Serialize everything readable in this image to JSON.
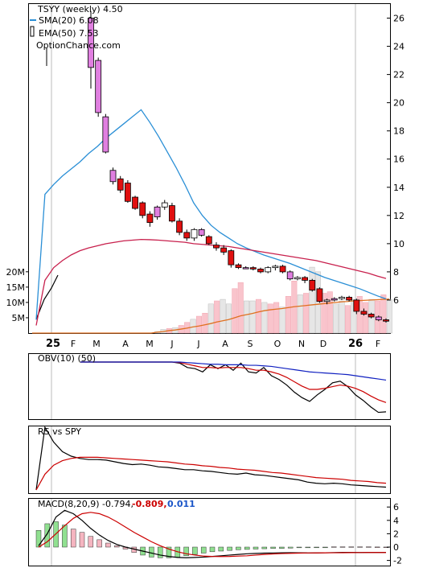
{
  "chart_data": [
    {
      "type": "candlestick",
      "panel": "price",
      "title": "TSYY (weekly) 4.50",
      "legend": [
        {
          "label": "SMA(20) 6.08",
          "color": "#2a8fd6"
        },
        {
          "label": "EMA(50) 7.53",
          "color": "#c8204d"
        }
      ],
      "source_label": "OptionChance.com",
      "y_ticks": [
        "26",
        "24",
        "22",
        "20",
        "18",
        "16",
        "14",
        "12",
        "10",
        "8",
        "6"
      ],
      "ylim": [
        3.6,
        27
      ],
      "x_month_labels": [
        {
          "label": "25",
          "bold": true
        },
        {
          "label": "F"
        },
        {
          "label": "M"
        },
        {
          "label": "A"
        },
        {
          "label": "M"
        },
        {
          "label": "J"
        },
        {
          "label": "J"
        },
        {
          "label": "A"
        },
        {
          "label": "S"
        },
        {
          "label": "O"
        },
        {
          "label": "N"
        },
        {
          "label": "D"
        },
        {
          "label": "26",
          "bold": true
        },
        {
          "label": "F"
        }
      ],
      "ohlc": [
        [
          26.0,
          26.5,
          21.0,
          22.5
        ],
        [
          23.0,
          23.2,
          19.0,
          19.3
        ],
        [
          19.0,
          19.2,
          16.4,
          16.5
        ],
        [
          15.2,
          15.4,
          14.2,
          14.4
        ],
        [
          14.6,
          14.8,
          13.6,
          13.8
        ],
        [
          14.3,
          14.5,
          12.9,
          13.0
        ],
        [
          13.3,
          13.4,
          12.4,
          12.5
        ],
        [
          12.9,
          13.0,
          11.8,
          12.0
        ],
        [
          12.1,
          12.3,
          11.2,
          11.5
        ],
        [
          11.9,
          12.7,
          11.7,
          12.6
        ],
        [
          12.6,
          13.1,
          12.4,
          12.9
        ],
        [
          12.7,
          12.9,
          11.5,
          11.6
        ],
        [
          11.6,
          11.8,
          10.6,
          10.8
        ],
        [
          10.8,
          11.0,
          10.2,
          10.4
        ],
        [
          10.4,
          11.1,
          10.2,
          11.0
        ],
        [
          11.0,
          11.1,
          10.5,
          10.6
        ],
        [
          10.5,
          10.6,
          9.9,
          10.0
        ],
        [
          9.9,
          10.1,
          9.5,
          9.7
        ],
        [
          9.7,
          9.9,
          9.2,
          9.4
        ],
        [
          9.5,
          9.6,
          8.3,
          8.5
        ],
        [
          8.5,
          8.6,
          8.2,
          8.3
        ],
        [
          8.3,
          8.4,
          8.2,
          8.3
        ],
        [
          8.3,
          8.4,
          8.1,
          8.2
        ],
        [
          8.2,
          8.3,
          7.9,
          8.0
        ],
        [
          8.0,
          8.4,
          7.9,
          8.3
        ],
        [
          8.3,
          8.5,
          8.1,
          8.4
        ],
        [
          8.4,
          8.5,
          7.9,
          8.0
        ],
        [
          8.0,
          8.1,
          7.4,
          7.5
        ],
        [
          7.5,
          7.7,
          7.4,
          7.6
        ],
        [
          7.6,
          7.7,
          7.2,
          7.4
        ],
        [
          7.4,
          7.5,
          6.6,
          6.7
        ],
        [
          6.8,
          6.9,
          5.8,
          5.9
        ],
        [
          5.9,
          6.1,
          5.7,
          6.0
        ],
        [
          6.0,
          6.2,
          5.9,
          6.1
        ],
        [
          6.1,
          6.3,
          6.0,
          6.2
        ],
        [
          6.2,
          6.3,
          5.9,
          6.0
        ],
        [
          6.0,
          6.1,
          5.0,
          5.2
        ],
        [
          5.2,
          5.4,
          4.9,
          5.0
        ],
        [
          5.0,
          5.1,
          4.7,
          4.8
        ],
        [
          4.8,
          4.9,
          4.5,
          4.6
        ],
        [
          4.6,
          4.7,
          4.4,
          4.5
        ]
      ],
      "sma20": [
        4.6,
        13.5,
        14.2,
        14.8,
        15.3,
        15.8,
        16.4,
        16.9,
        17.5,
        18.0,
        18.5,
        19.0,
        19.5,
        18.6,
        17.6,
        16.5,
        15.4,
        14.2,
        12.9,
        12.0,
        11.3,
        10.8,
        10.4,
        10.0,
        9.7,
        9.45,
        9.2,
        9.0,
        8.8,
        8.6,
        8.35,
        8.1,
        7.85,
        7.6,
        7.4,
        7.2,
        7.0,
        6.8,
        6.55,
        6.3,
        6.08
      ],
      "ema50": [
        4.2,
        7.4,
        8.3,
        8.8,
        9.2,
        9.5,
        9.7,
        9.85,
        10.0,
        10.1,
        10.2,
        10.25,
        10.3,
        10.28,
        10.25,
        10.2,
        10.15,
        10.1,
        10.0,
        9.95,
        9.9,
        9.85,
        9.8,
        9.7,
        9.6,
        9.5,
        9.4,
        9.3,
        9.2,
        9.1,
        9.0,
        8.9,
        8.8,
        8.65,
        8.5,
        8.35,
        8.2,
        8.05,
        7.9,
        7.7,
        7.53
      ]
    },
    {
      "type": "bar",
      "panel": "volume",
      "y_ticks": [
        "20M",
        "15M",
        "10M",
        "5M"
      ],
      "ylim": [
        0,
        21000000
      ],
      "values": [
        0,
        0,
        0,
        0,
        0,
        0,
        0,
        0,
        0,
        0,
        0,
        0,
        0,
        0,
        0,
        0,
        0,
        0,
        0,
        0,
        0,
        0.5,
        1.2,
        1.5,
        1.8,
        2.5,
        3.5,
        4.5,
        5.5,
        6.5,
        9.5,
        10.5,
        11,
        9.5,
        14.5,
        16.5,
        10.5,
        10.5,
        11,
        10,
        9.5,
        10,
        8.5,
        12,
        17,
        12.5,
        13,
        21.5,
        20,
        13,
        13.5,
        9.5,
        10.5,
        9,
        11,
        12,
        10,
        11,
        10.5,
        12.5,
        11
      ],
      "vol_ma": [
        0,
        0,
        0,
        0,
        0,
        0,
        0,
        0,
        0,
        0,
        0,
        0,
        0,
        0,
        0,
        0,
        0,
        0,
        0,
        0,
        0,
        0.3,
        0.5,
        0.8,
        1,
        1.3,
        1.6,
        2,
        2.3,
        2.7,
        3.1,
        3.6,
        4,
        4.4,
        5,
        5.6,
        6,
        6.4,
        6.9,
        7.3,
        7.6,
        7.8,
        8,
        8.3,
        8.6,
        8.8,
        9,
        9.2,
        9.4,
        9.6,
        9.8,
        10,
        10.2,
        10.3,
        10.5,
        10.6,
        10.7,
        10.8,
        10.9,
        11,
        11.1
      ]
    },
    {
      "type": "line",
      "panel": "obv",
      "label": "OBV(10) (50)",
      "series": [
        {
          "name": "OBV",
          "color": "#000000",
          "values": [
            1,
            1,
            1,
            1,
            1,
            1,
            1,
            1,
            1,
            1,
            1,
            1,
            1,
            0.98,
            0.9,
            0.88,
            0.82,
            0.95,
            0.88,
            0.95,
            0.85,
            0.98,
            0.82,
            0.8,
            0.9,
            0.75,
            0.68,
            0.58,
            0.45,
            0.35,
            0.28,
            0.4,
            0.5,
            0.62,
            0.65,
            0.55,
            0.4,
            0.3,
            0.18,
            0.08,
            0.09
          ]
        },
        {
          "name": "10",
          "color": "#cc0000",
          "values": [
            1,
            1,
            1,
            1,
            1,
            1,
            1,
            1,
            1,
            1,
            1,
            1,
            1,
            0.99,
            0.96,
            0.93,
            0.9,
            0.9,
            0.89,
            0.9,
            0.9,
            0.9,
            0.88,
            0.85,
            0.85,
            0.82,
            0.78,
            0.72,
            0.64,
            0.56,
            0.5,
            0.5,
            0.52,
            0.55,
            0.58,
            0.56,
            0.52,
            0.46,
            0.38,
            0.31,
            0.26
          ]
        },
        {
          "name": "50",
          "color": "#1020c0",
          "values": [
            1,
            1,
            1,
            1,
            1,
            1,
            1,
            1,
            1,
            1,
            1,
            1,
            1,
            1,
            0.99,
            0.98,
            0.97,
            0.96,
            0.96,
            0.95,
            0.95,
            0.95,
            0.94,
            0.94,
            0.93,
            0.92,
            0.9,
            0.88,
            0.86,
            0.84,
            0.82,
            0.81,
            0.8,
            0.79,
            0.78,
            0.77,
            0.75,
            0.73,
            0.71,
            0.69,
            0.67
          ]
        }
      ]
    },
    {
      "type": "line",
      "panel": "rs",
      "label": "RS vs SPY",
      "series": [
        {
          "name": "RS",
          "color": "#000000",
          "values": [
            0,
            1.2,
            0.85,
            0.68,
            0.6,
            0.56,
            0.54,
            0.54,
            0.53,
            0.5,
            0.47,
            0.45,
            0.46,
            0.44,
            0.41,
            0.4,
            0.38,
            0.36,
            0.36,
            0.34,
            0.33,
            0.31,
            0.29,
            0.28,
            0.3,
            0.27,
            0.26,
            0.24,
            0.22,
            0.2,
            0.18,
            0.14,
            0.12,
            0.11,
            0.12,
            0.11,
            0.09,
            0.08,
            0.07,
            0.06,
            0.05
          ]
        },
        {
          "name": "MA",
          "color": "#cc0000",
          "values": [
            0,
            0.28,
            0.44,
            0.52,
            0.56,
            0.58,
            0.58,
            0.58,
            0.57,
            0.56,
            0.55,
            0.54,
            0.53,
            0.52,
            0.51,
            0.5,
            0.48,
            0.46,
            0.45,
            0.43,
            0.42,
            0.4,
            0.39,
            0.37,
            0.36,
            0.35,
            0.33,
            0.31,
            0.3,
            0.28,
            0.26,
            0.24,
            0.22,
            0.21,
            0.2,
            0.19,
            0.17,
            0.16,
            0.15,
            0.13,
            0.12
          ]
        }
      ]
    },
    {
      "type": "bar+line",
      "panel": "macd",
      "label": "MACD(8,20,9) -0.794,",
      "label_signal": "-0.809,",
      "label_hist": "0.011",
      "y_ticks": [
        "6",
        "4",
        "2",
        "0",
        "-2"
      ],
      "ylim": [
        -3,
        7
      ],
      "histogram": [
        2.5,
        3.5,
        3.8,
        3.3,
        2.7,
        2.2,
        1.6,
        1.1,
        0.6,
        0.2,
        -0.3,
        -0.8,
        -1.2,
        -1.5,
        -1.6,
        -1.6,
        -1.5,
        -1.3,
        -1.1,
        -0.9,
        -0.7,
        -0.6,
        -0.5,
        -0.4,
        -0.35,
        -0.3,
        -0.25,
        -0.2,
        -0.2,
        -0.15,
        -0.1,
        -0.1,
        -0.05,
        -0.05,
        0.05,
        0.05,
        0.05,
        0.05,
        0.05,
        0.02,
        0.01
      ],
      "macd": [
        0.2,
        2.0,
        4.5,
        5.5,
        5.0,
        4.0,
        2.8,
        1.8,
        1.0,
        0.4,
        0,
        -0.3,
        -0.6,
        -0.9,
        -1.2,
        -1.4,
        -1.55,
        -1.6,
        -1.55,
        -1.5,
        -1.4,
        -1.3,
        -1.2,
        -1.1,
        -1.0,
        -0.95,
        -0.9,
        -0.88,
        -0.86,
        -0.84,
        -0.85,
        -0.88,
        -0.87,
        -0.85,
        -0.82,
        -0.8,
        -0.8,
        -0.81,
        -0.8,
        -0.8,
        -0.794
      ],
      "signal": [
        0,
        0.8,
        2.0,
        3.2,
        4.3,
        5.0,
        5.2,
        5.0,
        4.5,
        3.8,
        3.0,
        2.2,
        1.5,
        0.8,
        0.2,
        -0.3,
        -0.7,
        -1.0,
        -1.2,
        -1.35,
        -1.4,
        -1.42,
        -1.4,
        -1.35,
        -1.3,
        -1.2,
        -1.1,
        -1.02,
        -0.97,
        -0.93,
        -0.9,
        -0.88,
        -0.87,
        -0.86,
        -0.85,
        -0.84,
        -0.83,
        -0.82,
        -0.81,
        -0.81,
        -0.809
      ]
    }
  ]
}
